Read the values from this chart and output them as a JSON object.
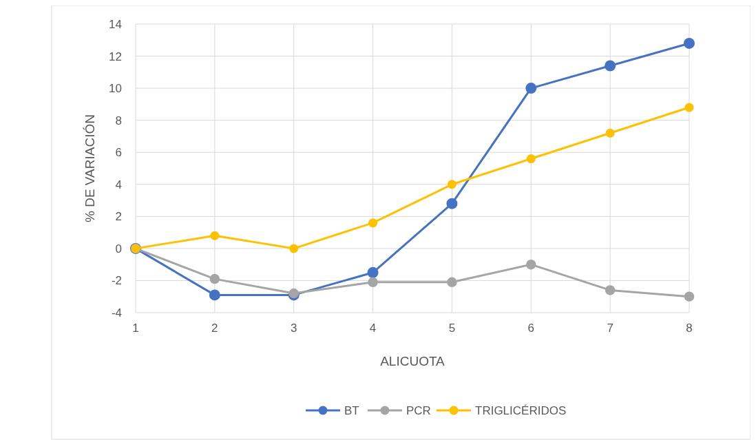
{
  "chart_data": {
    "type": "line",
    "xlabel": "ALICUOTA",
    "ylabel": "% DE VARIACIÓN",
    "x": [
      1,
      2,
      3,
      4,
      5,
      6,
      7,
      8
    ],
    "xlim": [
      1,
      8
    ],
    "xticks": [
      1,
      2,
      3,
      4,
      5,
      6,
      7,
      8
    ],
    "ylim": [
      -4,
      14
    ],
    "yticks": [
      -4,
      -2,
      0,
      2,
      4,
      6,
      8,
      10,
      12,
      14
    ],
    "grid": true,
    "legend": "bottom",
    "marker": "circle",
    "line_style": "solid",
    "series": [
      {
        "name": "BT",
        "color": "#4472c4",
        "values": [
          0,
          -2.9,
          -2.9,
          -1.5,
          2.8,
          10,
          11.4,
          12.8
        ]
      },
      {
        "name": "PCR",
        "color": "#a5a5a5",
        "values": [
          0,
          -1.9,
          -2.8,
          -2.1,
          -2.1,
          -1.0,
          -2.6,
          -3.0
        ]
      },
      {
        "name": "TRIGLICÉRIDOS",
        "color": "#ffc000",
        "values": [
          0,
          0.8,
          0,
          1.6,
          4.0,
          5.6,
          7.2,
          8.8
        ]
      }
    ]
  }
}
